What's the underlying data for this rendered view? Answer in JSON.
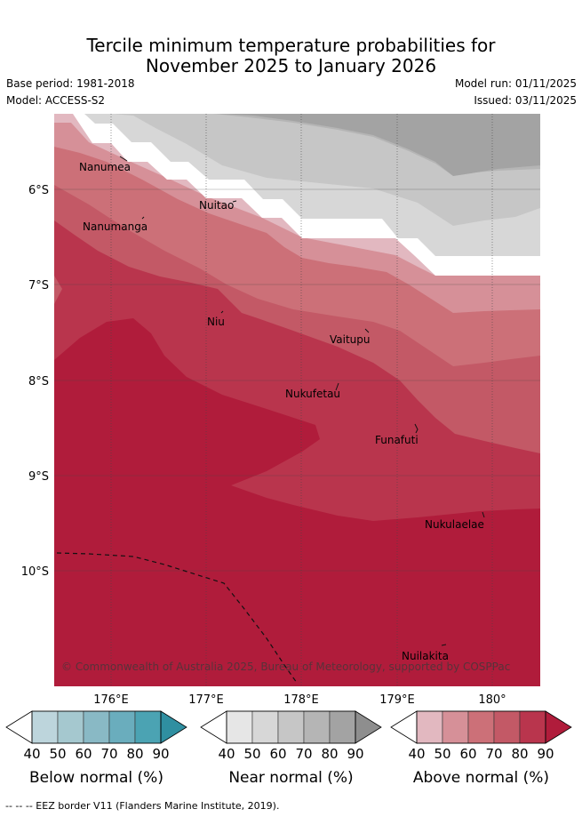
{
  "title": {
    "line1": "Tercile minimum temperature probabilities for",
    "line2": "November 2025 to January 2026"
  },
  "meta": {
    "base_period": "Base period: 1981-2018",
    "model": "Model: ACCESS-S2",
    "model_run": "Model run: 01/11/2025",
    "issued": "Issued: 03/11/2025"
  },
  "map": {
    "lat_ticks": [
      "6°S",
      "7°S",
      "8°S",
      "9°S",
      "10°S"
    ],
    "lon_ticks": [
      "176°E",
      "177°E",
      "178°E",
      "179°E",
      "180°"
    ],
    "places": [
      {
        "name": "Nanumea"
      },
      {
        "name": "Nanumanga"
      },
      {
        "name": "Nuitao"
      },
      {
        "name": "Niu"
      },
      {
        "name": "Vaitupu"
      },
      {
        "name": "Nukufetau"
      },
      {
        "name": "Funafuti"
      },
      {
        "name": "Nukulaelae"
      },
      {
        "name": "Nuilakita"
      }
    ],
    "copyright": "© Commonwealth of Australia 2025, Bureau of Meteorology, supported by COSPPac"
  },
  "colorbars": [
    {
      "label": "Below normal (%)",
      "ticks": [
        "40",
        "50",
        "60",
        "70",
        "80",
        "90"
      ],
      "colors": [
        "#bdd5dc",
        "#a5c8cf",
        "#89b9c5",
        "#6aadbd",
        "#4ba3b3",
        "#2f8fa1"
      ]
    },
    {
      "label": "Near normal (%)",
      "ticks": [
        "40",
        "50",
        "60",
        "70",
        "80",
        "90"
      ],
      "colors": [
        "#e6e6e6",
        "#d7d7d7",
        "#c6c6c6",
        "#b5b5b5",
        "#a3a3a3",
        "#8e8e8e"
      ]
    },
    {
      "label": "Above normal (%)",
      "ticks": [
        "40",
        "50",
        "60",
        "70",
        "80",
        "90"
      ],
      "colors": [
        "#e2b8c0",
        "#d69098",
        "#cc7078",
        "#c35966",
        "#b9354d",
        "#b01c3b"
      ]
    }
  ],
  "footnote": "-- -- -- EEZ border V11 (Flanders Marine Institute, 2019)."
}
